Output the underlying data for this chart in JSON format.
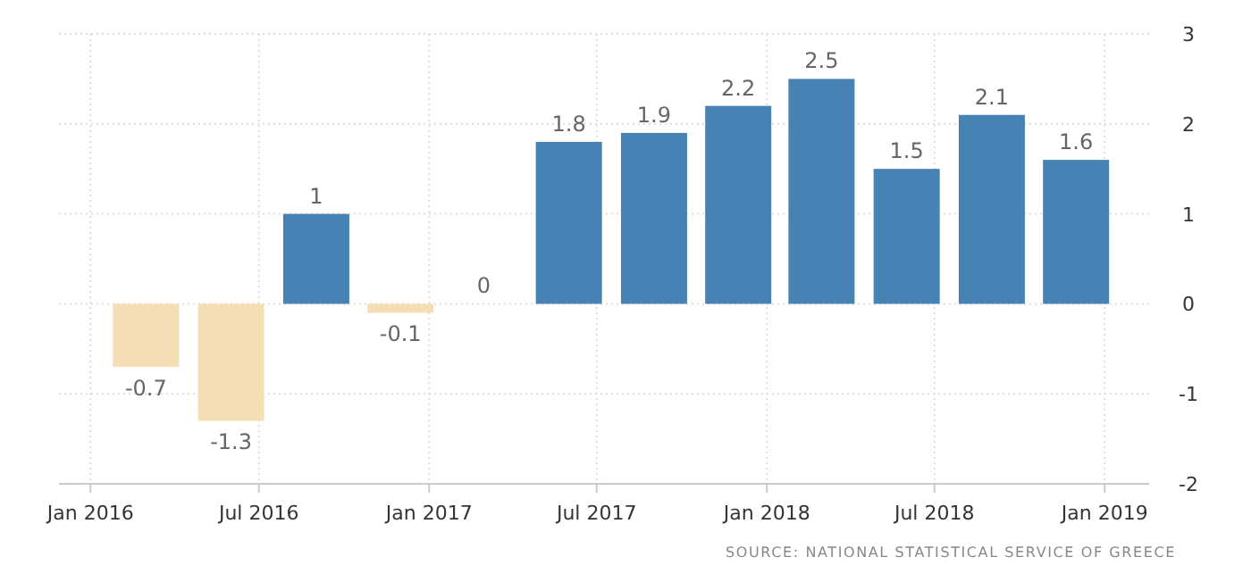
{
  "chart_data": {
    "type": "bar",
    "x": [
      "2016-03-01",
      "2016-06-01",
      "2016-09-01",
      "2016-12-01",
      "2017-03-01",
      "2017-06-01",
      "2017-09-01",
      "2017-12-01",
      "2018-03-01",
      "2018-06-01",
      "2018-09-01",
      "2018-12-01"
    ],
    "values": [
      -0.7,
      -1.3,
      1,
      -0.1,
      0,
      1.8,
      1.9,
      2.2,
      2.5,
      1.5,
      2.1,
      1.6
    ],
    "colors": [
      "#f5deb3",
      "#f5deb3",
      "#4682b4",
      "#f5deb3",
      "#4682b4",
      "#4682b4",
      "#4682b4",
      "#4682b4",
      "#4682b4",
      "#4682b4",
      "#4682b4",
      "#4682b4"
    ],
    "data_labels": true,
    "xlim": [
      "2015-11-28",
      "2019-02-18"
    ],
    "xticks": [
      {
        "value": "2016-01-01",
        "label": "Jan 2016"
      },
      {
        "value": "2016-07-01",
        "label": "Jul 2016"
      },
      {
        "value": "2017-01-01",
        "label": "Jan 2017"
      },
      {
        "value": "2017-07-01",
        "label": "Jul 2017"
      },
      {
        "value": "2018-01-01",
        "label": "Jan 2018"
      },
      {
        "value": "2018-07-01",
        "label": "Jul 2018"
      },
      {
        "value": "2019-01-01",
        "label": "Jan 2019"
      }
    ],
    "ylim": [
      -2,
      3
    ],
    "yticks": [
      -2,
      -1,
      0,
      1,
      2,
      3
    ],
    "grid": true,
    "annotations": [
      "SOURCE: NATIONAL STATISTICAL SERVICE OF GREECE"
    ]
  }
}
